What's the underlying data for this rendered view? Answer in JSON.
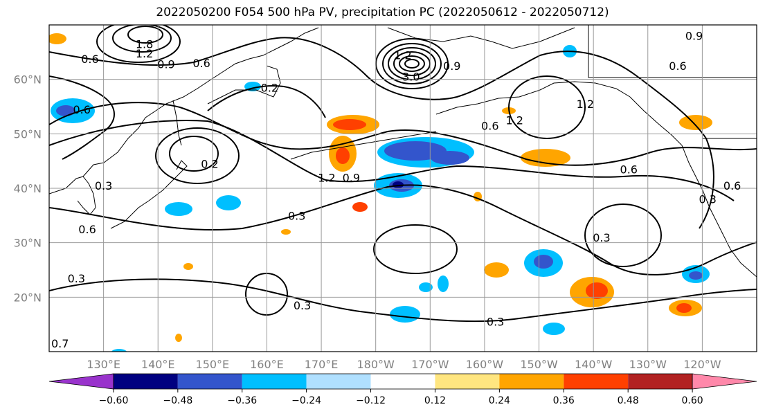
{
  "title": "2022050200 F054 500 hPa PV, precipitation PC (2022050612 - 2022050712)",
  "map": {
    "lon_range": [
      120,
      250
    ],
    "lat_range": [
      10,
      70
    ],
    "lat_ticks": [
      {
        "value": 60,
        "label": "60°N"
      },
      {
        "value": 50,
        "label": "50°N"
      },
      {
        "value": 40,
        "label": "40°N"
      },
      {
        "value": 30,
        "label": "30°N"
      },
      {
        "value": 20,
        "label": "20°N"
      }
    ],
    "lon_ticks": [
      {
        "value": 130,
        "label": "130°E"
      },
      {
        "value": 140,
        "label": "140°E"
      },
      {
        "value": 150,
        "label": "150°E"
      },
      {
        "value": 160,
        "label": "160°E"
      },
      {
        "value": 170,
        "label": "170°E"
      },
      {
        "value": 180,
        "label": "180°W"
      },
      {
        "value": 190,
        "label": "170°W"
      },
      {
        "value": 200,
        "label": "160°W"
      },
      {
        "value": 210,
        "label": "150°W"
      },
      {
        "value": 220,
        "label": "140°W"
      },
      {
        "value": 230,
        "label": "130°W"
      },
      {
        "value": 240,
        "label": "120°W"
      }
    ],
    "grid": true,
    "contour_labels": [
      {
        "text": "1.8",
        "lon": 137.5,
        "lat": 66.5
      },
      {
        "text": "1.2",
        "lon": 137.5,
        "lat": 64.8
      },
      {
        "text": "0.6",
        "lon": 127.5,
        "lat": 63.8
      },
      {
        "text": "0.9",
        "lon": 141.5,
        "lat": 62.8
      },
      {
        "text": "0.6",
        "lon": 148.0,
        "lat": 63.0
      },
      {
        "text": "0.2",
        "lon": 160.5,
        "lat": 58.5
      },
      {
        "text": "3.0",
        "lon": 186.5,
        "lat": 60.5
      },
      {
        "text": "1.2",
        "lon": 185.0,
        "lat": 64.5
      },
      {
        "text": "0.9",
        "lon": 194.0,
        "lat": 62.5
      },
      {
        "text": "0.6",
        "lon": 201.0,
        "lat": 51.5
      },
      {
        "text": "1.2",
        "lon": 205.5,
        "lat": 52.5
      },
      {
        "text": "1.2",
        "lon": 218.5,
        "lat": 55.5
      },
      {
        "text": "0.6",
        "lon": 235.5,
        "lat": 62.5
      },
      {
        "text": "0.9",
        "lon": 238.5,
        "lat": 68.0
      },
      {
        "text": "0.6",
        "lon": 226.5,
        "lat": 43.5
      },
      {
        "text": "0.6",
        "lon": 126.0,
        "lat": 54.5
      },
      {
        "text": "0.2",
        "lon": 149.5,
        "lat": 44.5
      },
      {
        "text": "1.2",
        "lon": 171.0,
        "lat": 42.0
      },
      {
        "text": "0.9",
        "lon": 175.5,
        "lat": 42.0
      },
      {
        "text": "0.3",
        "lon": 130.0,
        "lat": 40.5
      },
      {
        "text": "0.6",
        "lon": 127.0,
        "lat": 32.5
      },
      {
        "text": "0.3",
        "lon": 125.0,
        "lat": 23.5
      },
      {
        "text": "0.3",
        "lon": 165.5,
        "lat": 35.0
      },
      {
        "text": "0.3",
        "lon": 221.5,
        "lat": 31.0
      },
      {
        "text": "0.3",
        "lon": 241.0,
        "lat": 38.0
      },
      {
        "text": "0.6",
        "lon": 245.5,
        "lat": 40.5
      },
      {
        "text": "0.3",
        "lon": 166.5,
        "lat": 18.5
      },
      {
        "text": "0.3",
        "lon": 202.0,
        "lat": 15.5
      },
      {
        "text": "0.7",
        "lon": 122.0,
        "lat": 11.5
      }
    ]
  },
  "colorbar": {
    "colors": [
      "#9933cc",
      "#000080",
      "#3355cc",
      "#00bfff",
      "#b0e0ff",
      "#ffffff",
      "#ffe680",
      "#ffa500",
      "#ff4000",
      "#b22222",
      "#ff88aa"
    ],
    "tick_labels": [
      "−0.60",
      "−0.48",
      "−0.36",
      "−0.24",
      "−0.12",
      "0.12",
      "0.24",
      "0.36",
      "0.48",
      "0.60"
    ]
  }
}
